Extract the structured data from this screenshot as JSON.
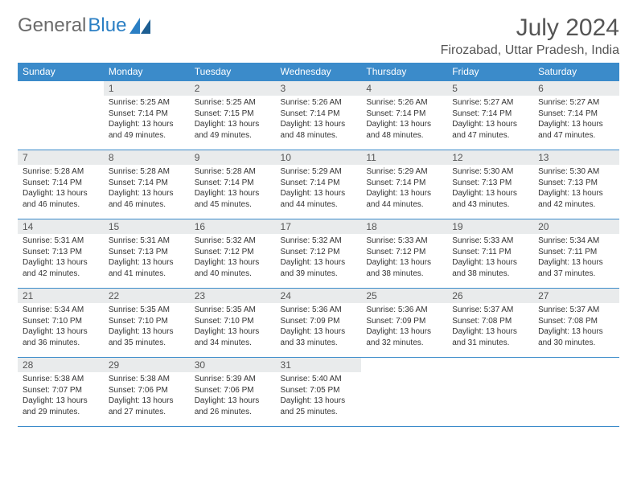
{
  "brand": {
    "name1": "General",
    "name2": "Blue"
  },
  "title": "July 2024",
  "location": "Firozabad, Uttar Pradesh, India",
  "colors": {
    "header_bg": "#3b8bca",
    "daynum_bg": "#e9ebec",
    "border": "#3b8bca",
    "text": "#333333"
  },
  "weekdays": [
    "Sunday",
    "Monday",
    "Tuesday",
    "Wednesday",
    "Thursday",
    "Friday",
    "Saturday"
  ],
  "rows": [
    [
      {
        "empty": true
      },
      {
        "day": "1",
        "sunrise": "Sunrise: 5:25 AM",
        "sunset": "Sunset: 7:14 PM",
        "daylight": "Daylight: 13 hours and 49 minutes."
      },
      {
        "day": "2",
        "sunrise": "Sunrise: 5:25 AM",
        "sunset": "Sunset: 7:15 PM",
        "daylight": "Daylight: 13 hours and 49 minutes."
      },
      {
        "day": "3",
        "sunrise": "Sunrise: 5:26 AM",
        "sunset": "Sunset: 7:14 PM",
        "daylight": "Daylight: 13 hours and 48 minutes."
      },
      {
        "day": "4",
        "sunrise": "Sunrise: 5:26 AM",
        "sunset": "Sunset: 7:14 PM",
        "daylight": "Daylight: 13 hours and 48 minutes."
      },
      {
        "day": "5",
        "sunrise": "Sunrise: 5:27 AM",
        "sunset": "Sunset: 7:14 PM",
        "daylight": "Daylight: 13 hours and 47 minutes."
      },
      {
        "day": "6",
        "sunrise": "Sunrise: 5:27 AM",
        "sunset": "Sunset: 7:14 PM",
        "daylight": "Daylight: 13 hours and 47 minutes."
      }
    ],
    [
      {
        "day": "7",
        "sunrise": "Sunrise: 5:28 AM",
        "sunset": "Sunset: 7:14 PM",
        "daylight": "Daylight: 13 hours and 46 minutes."
      },
      {
        "day": "8",
        "sunrise": "Sunrise: 5:28 AM",
        "sunset": "Sunset: 7:14 PM",
        "daylight": "Daylight: 13 hours and 46 minutes."
      },
      {
        "day": "9",
        "sunrise": "Sunrise: 5:28 AM",
        "sunset": "Sunset: 7:14 PM",
        "daylight": "Daylight: 13 hours and 45 minutes."
      },
      {
        "day": "10",
        "sunrise": "Sunrise: 5:29 AM",
        "sunset": "Sunset: 7:14 PM",
        "daylight": "Daylight: 13 hours and 44 minutes."
      },
      {
        "day": "11",
        "sunrise": "Sunrise: 5:29 AM",
        "sunset": "Sunset: 7:14 PM",
        "daylight": "Daylight: 13 hours and 44 minutes."
      },
      {
        "day": "12",
        "sunrise": "Sunrise: 5:30 AM",
        "sunset": "Sunset: 7:13 PM",
        "daylight": "Daylight: 13 hours and 43 minutes."
      },
      {
        "day": "13",
        "sunrise": "Sunrise: 5:30 AM",
        "sunset": "Sunset: 7:13 PM",
        "daylight": "Daylight: 13 hours and 42 minutes."
      }
    ],
    [
      {
        "day": "14",
        "sunrise": "Sunrise: 5:31 AM",
        "sunset": "Sunset: 7:13 PM",
        "daylight": "Daylight: 13 hours and 42 minutes."
      },
      {
        "day": "15",
        "sunrise": "Sunrise: 5:31 AM",
        "sunset": "Sunset: 7:13 PM",
        "daylight": "Daylight: 13 hours and 41 minutes."
      },
      {
        "day": "16",
        "sunrise": "Sunrise: 5:32 AM",
        "sunset": "Sunset: 7:12 PM",
        "daylight": "Daylight: 13 hours and 40 minutes."
      },
      {
        "day": "17",
        "sunrise": "Sunrise: 5:32 AM",
        "sunset": "Sunset: 7:12 PM",
        "daylight": "Daylight: 13 hours and 39 minutes."
      },
      {
        "day": "18",
        "sunrise": "Sunrise: 5:33 AM",
        "sunset": "Sunset: 7:12 PM",
        "daylight": "Daylight: 13 hours and 38 minutes."
      },
      {
        "day": "19",
        "sunrise": "Sunrise: 5:33 AM",
        "sunset": "Sunset: 7:11 PM",
        "daylight": "Daylight: 13 hours and 38 minutes."
      },
      {
        "day": "20",
        "sunrise": "Sunrise: 5:34 AM",
        "sunset": "Sunset: 7:11 PM",
        "daylight": "Daylight: 13 hours and 37 minutes."
      }
    ],
    [
      {
        "day": "21",
        "sunrise": "Sunrise: 5:34 AM",
        "sunset": "Sunset: 7:10 PM",
        "daylight": "Daylight: 13 hours and 36 minutes."
      },
      {
        "day": "22",
        "sunrise": "Sunrise: 5:35 AM",
        "sunset": "Sunset: 7:10 PM",
        "daylight": "Daylight: 13 hours and 35 minutes."
      },
      {
        "day": "23",
        "sunrise": "Sunrise: 5:35 AM",
        "sunset": "Sunset: 7:10 PM",
        "daylight": "Daylight: 13 hours and 34 minutes."
      },
      {
        "day": "24",
        "sunrise": "Sunrise: 5:36 AM",
        "sunset": "Sunset: 7:09 PM",
        "daylight": "Daylight: 13 hours and 33 minutes."
      },
      {
        "day": "25",
        "sunrise": "Sunrise: 5:36 AM",
        "sunset": "Sunset: 7:09 PM",
        "daylight": "Daylight: 13 hours and 32 minutes."
      },
      {
        "day": "26",
        "sunrise": "Sunrise: 5:37 AM",
        "sunset": "Sunset: 7:08 PM",
        "daylight": "Daylight: 13 hours and 31 minutes."
      },
      {
        "day": "27",
        "sunrise": "Sunrise: 5:37 AM",
        "sunset": "Sunset: 7:08 PM",
        "daylight": "Daylight: 13 hours and 30 minutes."
      }
    ],
    [
      {
        "day": "28",
        "sunrise": "Sunrise: 5:38 AM",
        "sunset": "Sunset: 7:07 PM",
        "daylight": "Daylight: 13 hours and 29 minutes."
      },
      {
        "day": "29",
        "sunrise": "Sunrise: 5:38 AM",
        "sunset": "Sunset: 7:06 PM",
        "daylight": "Daylight: 13 hours and 27 minutes."
      },
      {
        "day": "30",
        "sunrise": "Sunrise: 5:39 AM",
        "sunset": "Sunset: 7:06 PM",
        "daylight": "Daylight: 13 hours and 26 minutes."
      },
      {
        "day": "31",
        "sunrise": "Sunrise: 5:40 AM",
        "sunset": "Sunset: 7:05 PM",
        "daylight": "Daylight: 13 hours and 25 minutes."
      },
      {
        "empty": true
      },
      {
        "empty": true
      },
      {
        "empty": true
      }
    ]
  ]
}
